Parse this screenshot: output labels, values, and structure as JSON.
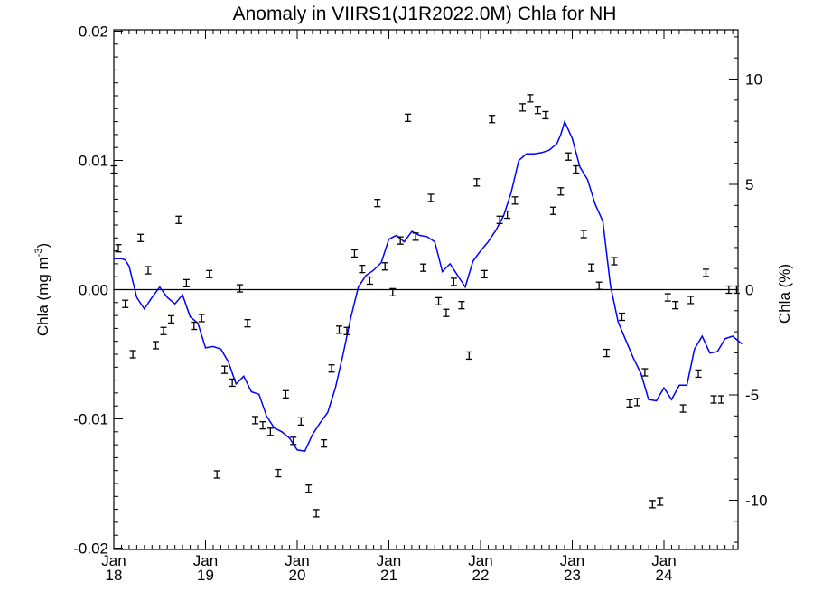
{
  "chart_data": {
    "type": "line",
    "title": "Anomaly in VIIRS1(J1R2022.0M) Chla for NH",
    "ylabel_left": "Chla (mg m",
    "ylabel_left_sup": "-3",
    "ylabel_left_close": ")",
    "ylabel_right": "Chla (%)",
    "xlabel": "",
    "xlim": [
      2018.0,
      2024.85
    ],
    "ylim_left": [
      -0.0202,
      0.0202
    ],
    "ylim_right": [
      -12.1,
      12.1
    ],
    "zero_line": true,
    "grid": false,
    "legend": "none",
    "x_ticks": [
      {
        "x": 2018.0,
        "month": "Jan",
        "year": "18"
      },
      {
        "x": 2019.0,
        "month": "Jan",
        "year": "19"
      },
      {
        "x": 2020.0,
        "month": "Jan",
        "year": "20"
      },
      {
        "x": 2021.0,
        "month": "Jan",
        "year": "21"
      },
      {
        "x": 2022.0,
        "month": "Jan",
        "year": "22"
      },
      {
        "x": 2023.0,
        "month": "Jan",
        "year": "23"
      },
      {
        "x": 2024.0,
        "month": "Jan",
        "year": "24"
      }
    ],
    "y_left_ticks": [
      {
        "v": 0.02,
        "label": "0.02"
      },
      {
        "v": 0.01,
        "label": "0.01"
      },
      {
        "v": 0.0,
        "label": "0.00"
      },
      {
        "v": -0.01,
        "label": "-0.01"
      },
      {
        "v": -0.02,
        "label": "-0.02"
      }
    ],
    "y_right_ticks": [
      {
        "v": 10,
        "label": "10"
      },
      {
        "v": 5,
        "label": "5"
      },
      {
        "v": 0,
        "label": "0"
      },
      {
        "v": -5,
        "label": "-5"
      },
      {
        "v": -10,
        "label": "-10"
      }
    ],
    "line_color": "#0000ff",
    "point_color": "#000000",
    "series": [
      {
        "kind": "smoothed-line",
        "axis": "left",
        "x": [
          2018.0,
          2018.083,
          2018.125,
          2018.167,
          2018.25,
          2018.333,
          2018.417,
          2018.5,
          2018.583,
          2018.667,
          2018.75,
          2018.833,
          2018.917,
          2019.0,
          2019.083,
          2019.167,
          2019.25,
          2019.333,
          2019.417,
          2019.5,
          2019.583,
          2019.667,
          2019.75,
          2019.833,
          2019.917,
          2020.0,
          2020.083,
          2020.167,
          2020.25,
          2020.333,
          2020.417,
          2020.5,
          2020.583,
          2020.667,
          2020.75,
          2020.833,
          2020.917,
          2021.0,
          2021.083,
          2021.167,
          2021.25,
          2021.333,
          2021.417,
          2021.5,
          2021.583,
          2021.667,
          2021.75,
          2021.833,
          2021.917,
          2022.0,
          2022.083,
          2022.167,
          2022.25,
          2022.333,
          2022.417,
          2022.5,
          2022.583,
          2022.667,
          2022.75,
          2022.833,
          2022.875,
          2022.917,
          2023.0,
          2023.083,
          2023.167,
          2023.25,
          2023.333,
          2023.417,
          2023.5,
          2023.583,
          2023.667,
          2023.75,
          2023.833,
          2023.917,
          2024.0,
          2024.083,
          2024.167,
          2024.25,
          2024.333,
          2024.417,
          2024.5,
          2024.583,
          2024.667,
          2024.75,
          2024.85
        ],
        "y": [
          0.0024,
          0.0024,
          0.0023,
          0.0018,
          -0.0006,
          -0.0015,
          -0.0006,
          0.0002,
          -0.0006,
          -0.0011,
          -0.0004,
          -0.0021,
          -0.0026,
          -0.0045,
          -0.0044,
          -0.0046,
          -0.0056,
          -0.0073,
          -0.0067,
          -0.0079,
          -0.0081,
          -0.0098,
          -0.0107,
          -0.011,
          -0.0115,
          -0.0124,
          -0.0125,
          -0.0112,
          -0.0103,
          -0.0095,
          -0.0076,
          -0.005,
          -0.0022,
          0.0002,
          0.0011,
          0.0015,
          0.0021,
          0.0039,
          0.0042,
          0.0037,
          0.0045,
          0.0042,
          0.0041,
          0.0037,
          0.0014,
          0.002,
          0.0011,
          0.0002,
          0.0022,
          0.003,
          0.0037,
          0.0046,
          0.0057,
          0.0075,
          0.01,
          0.0105,
          0.0105,
          0.0106,
          0.0108,
          0.0113,
          0.012,
          0.013,
          0.0117,
          0.0095,
          0.0085,
          0.0066,
          0.0053,
          0.0003,
          -0.0025,
          -0.0039,
          -0.0053,
          -0.0065,
          -0.0085,
          -0.0086,
          -0.0076,
          -0.0085,
          -0.0074,
          -0.0074,
          -0.0046,
          -0.0036,
          -0.0049,
          -0.0048,
          -0.0038,
          -0.0036,
          -0.0042
        ]
      },
      {
        "kind": "points-with-error-bars",
        "axis": "left",
        "x": [
          2018.0,
          2018.05,
          2018.125,
          2018.208,
          2018.292,
          2018.375,
          2018.458,
          2018.542,
          2018.625,
          2018.708,
          2018.792,
          2018.875,
          2018.958,
          2019.042,
          2019.125,
          2019.208,
          2019.292,
          2019.375,
          2019.458,
          2019.542,
          2019.625,
          2019.708,
          2019.792,
          2019.875,
          2019.958,
          2020.042,
          2020.125,
          2020.208,
          2020.292,
          2020.375,
          2020.458,
          2020.542,
          2020.625,
          2020.708,
          2020.792,
          2020.875,
          2020.958,
          2021.042,
          2021.125,
          2021.208,
          2021.292,
          2021.375,
          2021.458,
          2021.542,
          2021.625,
          2021.708,
          2021.792,
          2021.875,
          2021.958,
          2022.042,
          2022.125,
          2022.208,
          2022.292,
          2022.375,
          2022.458,
          2022.542,
          2022.625,
          2022.708,
          2022.792,
          2022.875,
          2022.958,
          2023.042,
          2023.125,
          2023.208,
          2023.292,
          2023.375,
          2023.458,
          2023.542,
          2023.625,
          2023.708,
          2023.792,
          2023.875,
          2023.958,
          2024.042,
          2024.125,
          2024.208,
          2024.292,
          2024.375,
          2024.458,
          2024.542,
          2024.625,
          2024.708,
          2024.792
        ],
        "y": [
          0.0093,
          0.0032,
          -0.0011,
          -0.005,
          0.004,
          0.0015,
          -0.0043,
          -0.0032,
          -0.0023,
          0.0054,
          0.0005,
          -0.0028,
          -0.0022,
          0.0012,
          -0.0143,
          -0.0062,
          -0.0072,
          0.0001,
          -0.0026,
          -0.0101,
          -0.0105,
          -0.011,
          -0.0142,
          -0.0081,
          -0.0117,
          -0.0102,
          -0.0154,
          -0.0173,
          -0.0119,
          -0.0061,
          -0.0031,
          -0.0032,
          0.0028,
          0.0016,
          0.0007,
          0.0067,
          0.0018,
          -0.0002,
          0.0038,
          0.0133,
          0.0041,
          0.0017,
          0.0071,
          -0.0009,
          -0.0018,
          0.0006,
          -0.0012,
          -0.0051,
          0.0083,
          0.0012,
          0.0132,
          0.0054,
          0.0058,
          0.0069,
          0.0141,
          0.0148,
          0.0139,
          0.0135,
          0.0061,
          0.0076,
          0.0103,
          0.0093,
          0.0043,
          0.0017,
          0.0003,
          -0.0049,
          0.0022,
          -0.0021,
          -0.0088,
          -0.0087,
          -0.0064,
          -0.0166,
          -0.0164,
          -0.0006,
          -0.0012,
          -0.0092,
          -0.0008,
          -0.0065,
          0.0013,
          -0.0085,
          -0.0085,
          0.0,
          0.0
        ]
      }
    ]
  }
}
